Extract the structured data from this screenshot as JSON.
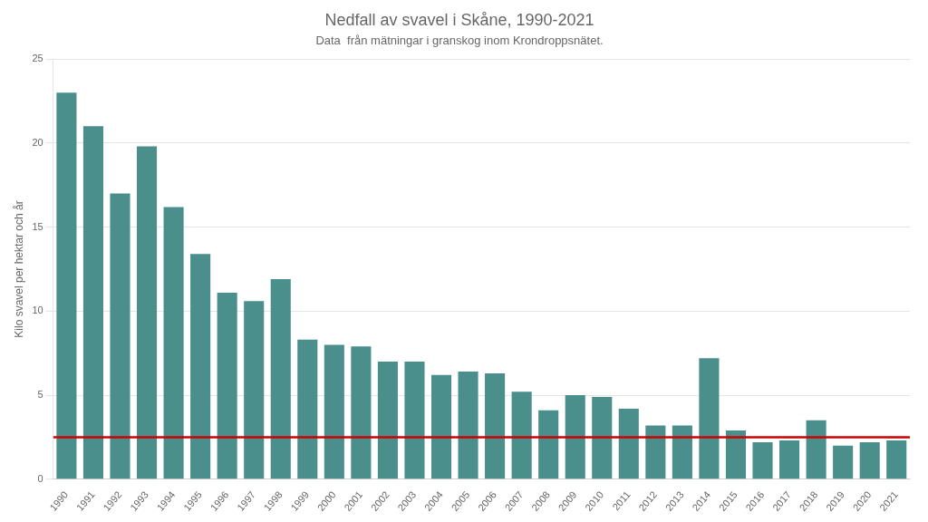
{
  "chart_data": {
    "type": "bar",
    "title": "Nedfall av svavel i Skåne, 1990-2021",
    "subtitle": "Data  från mätningar i granskog inom Krondroppsnätet.",
    "y_label": "Kilo svavel per hektar och år",
    "categories": [
      "1990",
      "1991",
      "1992",
      "1993",
      "1994",
      "1995",
      "1996",
      "1997",
      "1998",
      "1999",
      "2000",
      "2001",
      "2002",
      "2003",
      "2004",
      "2005",
      "2006",
      "2007",
      "2008",
      "2009",
      "2010",
      "2011",
      "2012",
      "2013",
      "2014",
      "2015",
      "2016",
      "2017",
      "2018",
      "2019",
      "2020",
      "2021"
    ],
    "values": [
      23.0,
      21.0,
      17.0,
      19.8,
      16.2,
      13.4,
      11.1,
      10.6,
      11.9,
      8.3,
      8.0,
      7.9,
      7.0,
      7.0,
      6.2,
      6.4,
      6.3,
      5.2,
      4.1,
      5.0,
      4.9,
      4.2,
      3.2,
      3.2,
      7.2,
      2.9,
      2.2,
      2.3,
      3.5,
      2.0,
      2.2,
      2.3
    ],
    "color": "#4a8f8c",
    "reference_line": {
      "value": 2.5,
      "color": "#cc0000"
    },
    "ylim": [
      0,
      25
    ],
    "yticks": [
      0,
      5,
      10,
      15,
      20,
      25
    ],
    "grid": true
  }
}
